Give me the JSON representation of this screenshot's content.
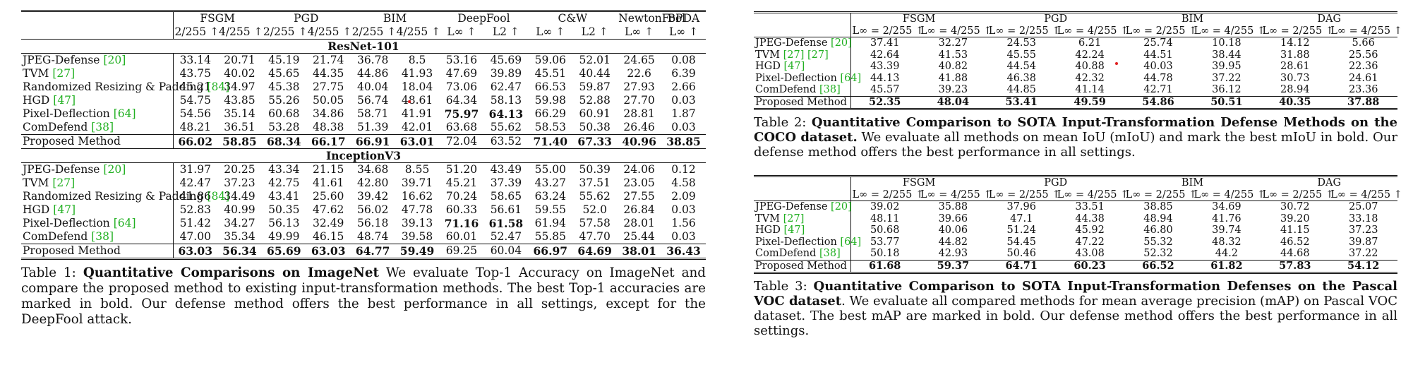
{
  "table1": {
    "groups": [
      {
        "name": "FSGM",
        "span": 2
      },
      {
        "name": "PGD",
        "span": 2
      },
      {
        "name": "BIM",
        "span": 2
      },
      {
        "name": "DeepFool",
        "span": 2
      },
      {
        "name": "C&W",
        "span": 2
      },
      {
        "name": "NewtonFool",
        "span": 1
      },
      {
        "name": "BPDA",
        "span": 1
      }
    ],
    "subheaders": [
      "2/255 ↑",
      "4/255 ↑",
      "2/255 ↑",
      "4/255 ↑",
      "2/255 ↑",
      "4/255 ↑",
      "L∞ ↑",
      "L2 ↑",
      "L∞ ↑",
      "L2 ↑",
      "L∞ ↑",
      "L∞ ↑"
    ],
    "sections": [
      {
        "title": "ResNet-101",
        "rows": [
          {
            "method": "JPEG-Defense",
            "cite": "[20]",
            "values": [
              "33.14",
              "20.71",
              "45.19",
              "21.74",
              "36.78",
              "8.5",
              "53.16",
              "45.69",
              "59.06",
              "52.01",
              "24.65",
              "0.08"
            ],
            "bold": []
          },
          {
            "method": "TVM",
            "cite": "[27]",
            "values": [
              "43.75",
              "40.02",
              "45.65",
              "44.35",
              "44.86",
              "41.93",
              "47.69",
              "39.89",
              "45.51",
              "40.44",
              "22.6",
              "6.39"
            ],
            "bold": []
          },
          {
            "method": "Randomized Resizing & Padding",
            "cite": "[84]",
            "values": [
              "45.21",
              "34.97",
              "45.38",
              "27.75",
              "40.04",
              "18.04",
              "73.06",
              "62.47",
              "66.53",
              "59.87",
              "27.93",
              "2.66"
            ],
            "bold": []
          },
          {
            "method": "HGD",
            "cite": "[47]",
            "values": [
              "54.75",
              "43.85",
              "55.26",
              "50.05",
              "56.74",
              "48.61",
              "64.34",
              "58.13",
              "59.98",
              "52.88",
              "27.70",
              "0.03"
            ],
            "bold": []
          },
          {
            "method": "Pixel-Deflection",
            "cite": "[64]",
            "values": [
              "54.56",
              "35.14",
              "60.68",
              "34.86",
              "58.71",
              "41.91",
              "75.97",
              "64.13",
              "66.29",
              "60.91",
              "28.81",
              "1.87"
            ],
            "bold": [
              6,
              7
            ]
          },
          {
            "method": "ComDefend",
            "cite": "[38]",
            "values": [
              "48.21",
              "36.51",
              "53.28",
              "48.38",
              "51.39",
              "42.01",
              "63.68",
              "55.62",
              "58.53",
              "50.38",
              "26.46",
              "0.03"
            ],
            "bold": []
          },
          {
            "method": "Proposed Method",
            "cite": "",
            "values": [
              "66.02",
              "58.85",
              "68.34",
              "66.17",
              "66.91",
              "63.01",
              "72.04",
              "63.52",
              "71.40",
              "67.33",
              "40.96",
              "38.85"
            ],
            "bold": [
              0,
              1,
              2,
              3,
              4,
              5,
              8,
              9,
              10,
              11
            ],
            "proposed": true
          }
        ]
      },
      {
        "title": "InceptionV3",
        "rows": [
          {
            "method": "JPEG-Defense",
            "cite": "[20]",
            "values": [
              "31.97",
              "20.25",
              "43.34",
              "21.15",
              "34.68",
              "8.55",
              "51.20",
              "43.49",
              "55.00",
              "50.39",
              "24.06",
              "0.12"
            ],
            "bold": []
          },
          {
            "method": "TVM",
            "cite": "[27]",
            "values": [
              "42.47",
              "37.23",
              "42.75",
              "41.61",
              "42.80",
              "39.71",
              "45.21",
              "37.39",
              "43.27",
              "37.51",
              "23.05",
              "4.58"
            ],
            "bold": []
          },
          {
            "method": "Randomized Resizing & Padding",
            "cite": "[84]",
            "values": [
              "41.86",
              "34.49",
              "43.41",
              "25.60",
              "39.42",
              "16.62",
              "70.24",
              "58.65",
              "63.24",
              "55.62",
              "27.55",
              "2.09"
            ],
            "bold": []
          },
          {
            "method": "HGD",
            "cite": "[47]",
            "values": [
              "52.83",
              "40.99",
              "50.35",
              "47.62",
              "56.02",
              "47.78",
              "60.33",
              "56.61",
              "59.55",
              "52.0",
              "26.84",
              "0.03"
            ],
            "bold": []
          },
          {
            "method": "Pixel-Deflection",
            "cite": "[64]",
            "values": [
              "51.42",
              "34.27",
              "56.13",
              "32.49",
              "56.18",
              "39.13",
              "71.16",
              "61.58",
              "61.94",
              "57.58",
              "28.01",
              "1.56"
            ],
            "bold": [
              6,
              7
            ]
          },
          {
            "method": "ComDefend",
            "cite": "[38]",
            "values": [
              "47.00",
              "35.34",
              "49.99",
              "46.15",
              "48.74",
              "39.58",
              "60.01",
              "52.47",
              "55.85",
              "47.70",
              "25.44",
              "0.03"
            ],
            "bold": []
          },
          {
            "method": "Proposed Method",
            "cite": "",
            "values": [
              "63.03",
              "56.34",
              "65.69",
              "63.03",
              "64.77",
              "59.49",
              "69.25",
              "60.04",
              "66.97",
              "64.69",
              "38.01",
              "36.43"
            ],
            "bold": [
              0,
              1,
              2,
              3,
              4,
              5,
              8,
              9,
              10,
              11
            ],
            "proposed": true
          }
        ]
      }
    ],
    "caption": {
      "label": "Table 1: ",
      "lead": "Quantitative Comparisons on ImageNet",
      "text": " We evaluate Top-1 Accuracy on ImageNet and compare the proposed method to existing input-transformation methods. The best Top-1 accuracies are marked in bold. Our defense method offers the best performance in all settings, except for the DeepFool attack."
    }
  },
  "table2": {
    "groups": [
      {
        "name": "FSGM",
        "span": 2
      },
      {
        "name": "PGD",
        "span": 2
      },
      {
        "name": "BIM",
        "span": 2
      },
      {
        "name": "DAG",
        "span": 2
      }
    ],
    "subheaders": [
      "L∞ = 2/255 ↑",
      "L∞ = 4/255 ↑",
      "L∞ = 2/255 ↑",
      "L∞ = 4/255 ↑",
      "L∞ = 2/255 ↑",
      "L∞ = 4/255 ↑",
      "L∞ = 2/255 ↑",
      "L∞ = 4/255 ↑"
    ],
    "rows": [
      {
        "method": "JPEG-Defense",
        "cite": "[20]",
        "values": [
          "37.41",
          "32.27",
          "24.53",
          "6.21",
          "25.74",
          "10.18",
          "14.12",
          "5.66"
        ]
      },
      {
        "method": "TVM",
        "cite": "[27] [27]",
        "values": [
          "42.64",
          "41.53",
          "45.55",
          "42.24",
          "44.51",
          "38.44",
          "31.88",
          "25.56"
        ]
      },
      {
        "method": "HGD",
        "cite": "[47]",
        "values": [
          "43.39",
          "40.82",
          "44.54",
          "40.88",
          "40.03",
          "39.95",
          "28.61",
          "22.36"
        ]
      },
      {
        "method": "Pixel-Deflection",
        "cite": "[64]",
        "values": [
          "44.13",
          "41.88",
          "46.38",
          "42.32",
          "44.78",
          "37.22",
          "30.73",
          "24.61"
        ]
      },
      {
        "method": "ComDefend",
        "cite": "[38]",
        "values": [
          "45.57",
          "39.23",
          "44.85",
          "41.14",
          "42.71",
          "36.12",
          "28.94",
          "23.36"
        ]
      },
      {
        "method": "Proposed Method",
        "cite": "",
        "values": [
          "52.35",
          "48.04",
          "53.41",
          "49.59",
          "54.86",
          "50.51",
          "40.35",
          "37.88"
        ],
        "proposed": true
      }
    ],
    "caption": {
      "label": "Table 2: ",
      "lead": "Quantitative Comparison to SOTA Input-Transformation Defense Methods on the COCO dataset.",
      "text": " We evaluate all methods on mean IoU (mIoU) and mark the best mIoU in bold. Our defense method offers the best performance in all settings."
    }
  },
  "table3": {
    "groups": [
      {
        "name": "FSGM",
        "span": 2
      },
      {
        "name": "PGD",
        "span": 2
      },
      {
        "name": "BIM",
        "span": 2
      },
      {
        "name": "DAG",
        "span": 2
      }
    ],
    "subheaders": [
      "L∞ = 2/255 ↑",
      "L∞ = 4/255 ↑",
      "L∞ = 2/255 ↑",
      "L∞ = 4/255 ↑",
      "L∞ = 2/255 ↑",
      "L∞ = 4/255 ↑",
      "L∞ = 2/255 ↑",
      "L∞ = 4/255 ↑"
    ],
    "rows": [
      {
        "method": "JPEG-Defense",
        "cite": "[20]",
        "values": [
          "39.02",
          "35.88",
          "37.96",
          "33.51",
          "38.85",
          "34.69",
          "30.72",
          "25.07"
        ]
      },
      {
        "method": "TVM",
        "cite": "[27]",
        "values": [
          "48.11",
          "39.66",
          "47.1",
          "44.38",
          "48.94",
          "41.76",
          "39.20",
          "33.18"
        ]
      },
      {
        "method": "HGD",
        "cite": "[47]",
        "values": [
          "50.68",
          "40.06",
          "51.24",
          "45.92",
          "46.80",
          "39.74",
          "41.15",
          "37.23"
        ]
      },
      {
        "method": "Pixel-Deflection",
        "cite": "[64]",
        "values": [
          "53.77",
          "44.82",
          "54.45",
          "47.22",
          "55.32",
          "48.32",
          "46.52",
          "39.87"
        ]
      },
      {
        "method": "ComDefend",
        "cite": "[38]",
        "values": [
          "50.18",
          "42.93",
          "50.46",
          "43.08",
          "52.32",
          "44.2",
          "44.68",
          "37.22"
        ]
      },
      {
        "method": "Proposed Method",
        "cite": "",
        "values": [
          "61.68",
          "59.37",
          "64.71",
          "60.23",
          "66.52",
          "61.82",
          "57.83",
          "54.12"
        ],
        "proposed": true
      }
    ],
    "caption": {
      "label": "Table 3: ",
      "lead": "Quantitative Comparison to SOTA Input-Transformation Defenses on the Pascal VOC dataset",
      "text": ". We evaluate all compared methods for mean average precision (mAP) on Pascal VOC dataset. The best mAP are marked in bold. Our defense method offers the best performance in all settings."
    }
  }
}
